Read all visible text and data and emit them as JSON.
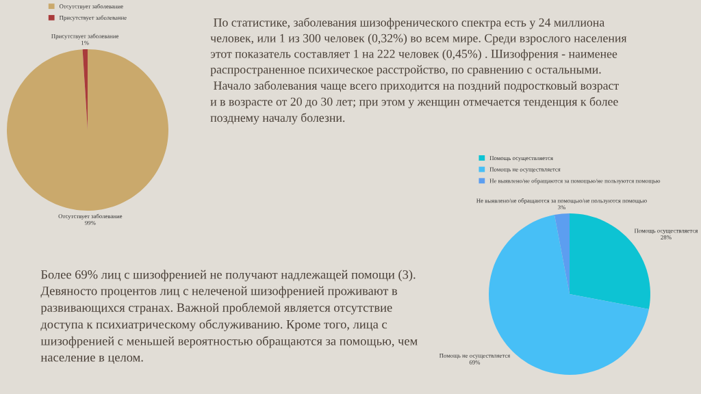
{
  "chart_data": [
    {
      "type": "pie",
      "categories": [
        "Отсутствует заболевание",
        "Присутствует заболевание"
      ],
      "values": [
        99,
        1
      ],
      "value_labels": [
        "99%",
        "1%"
      ],
      "colors": [
        "#caa96c",
        "#a93b3b"
      ],
      "legend": "top",
      "annotations": [
        " По статистике, заболевания шизофренического спектра есть у 24 миллиона\nчеловек, или 1 из 300 человек (0,32%) во всем мире. Среди взрослого населения\nэтот показатель составляет 1 на 222 человек (0,45%) . Шизофрения - наименее\nраспространенное психическое расстройство, по сравнению с остальными.\n Начало заболевания чаще всего приходится на поздний подростковый возраст\nи в возрасте от 20 до 30 лет; при этом у женщин отмечается тенденция к более\nпозднему началу болезни."
      ]
    },
    {
      "type": "pie",
      "categories": [
        "Помощь осуществляется",
        "Помощь не осуществляется",
        "Не выявлено/не обращаются за помощью/не пользуются помощью"
      ],
      "values": [
        28,
        69,
        3
      ],
      "value_labels": [
        "28%",
        "69%",
        "3%"
      ],
      "colors": [
        "#0dc3d3",
        "#47bff6",
        "#5c9ef0"
      ],
      "legend": "top",
      "annotations": [
        "Более 69% лиц с шизофренией не получают надлежащей помощи (3).\nДевяносто процентов лиц с нелеченой шизофренией проживают в\nразвивающихся странах. Важной проблемой является отсутствие\nдоступа к психиатрическому обслуживанию. Кроме того, лица с\nшизофренией с меньшей вероятностью обращаются за помощью, чем\nнаселение в целом."
      ]
    }
  ]
}
